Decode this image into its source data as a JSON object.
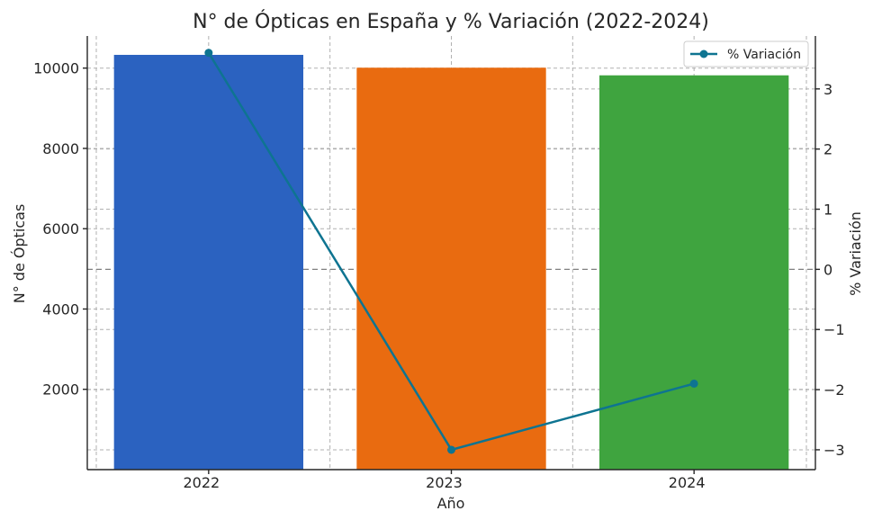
{
  "chart_data": {
    "type": "bar",
    "title": "N° de Ópticas en España y % Variación (2022-2024)",
    "xlabel": "Año",
    "ylabel": "N° de Ópticas",
    "y2label": "% Variación",
    "categories": [
      "2022",
      "2023",
      "2024"
    ],
    "bar_values": [
      10330,
      10010,
      9820
    ],
    "bar_colors": [
      "#2b62c0",
      "#e96b10",
      "#3fa43f"
    ],
    "line_series": {
      "name": "% Variación",
      "values": [
        3.6,
        -3.0,
        -1.9
      ],
      "color": "#0e7491"
    },
    "ylim": [
      0,
      10800
    ],
    "y2lim": [
      -3.33,
      3.88
    ],
    "yticks": [
      2000,
      4000,
      6000,
      8000,
      10000
    ],
    "y2ticks": [
      3,
      2,
      1,
      0,
      -1,
      -2,
      -3
    ],
    "y2tick_labels": [
      "3",
      "2",
      "1",
      "0",
      "−1",
      "−2",
      "−3"
    ],
    "grid": true,
    "legend_position": "top-right"
  }
}
